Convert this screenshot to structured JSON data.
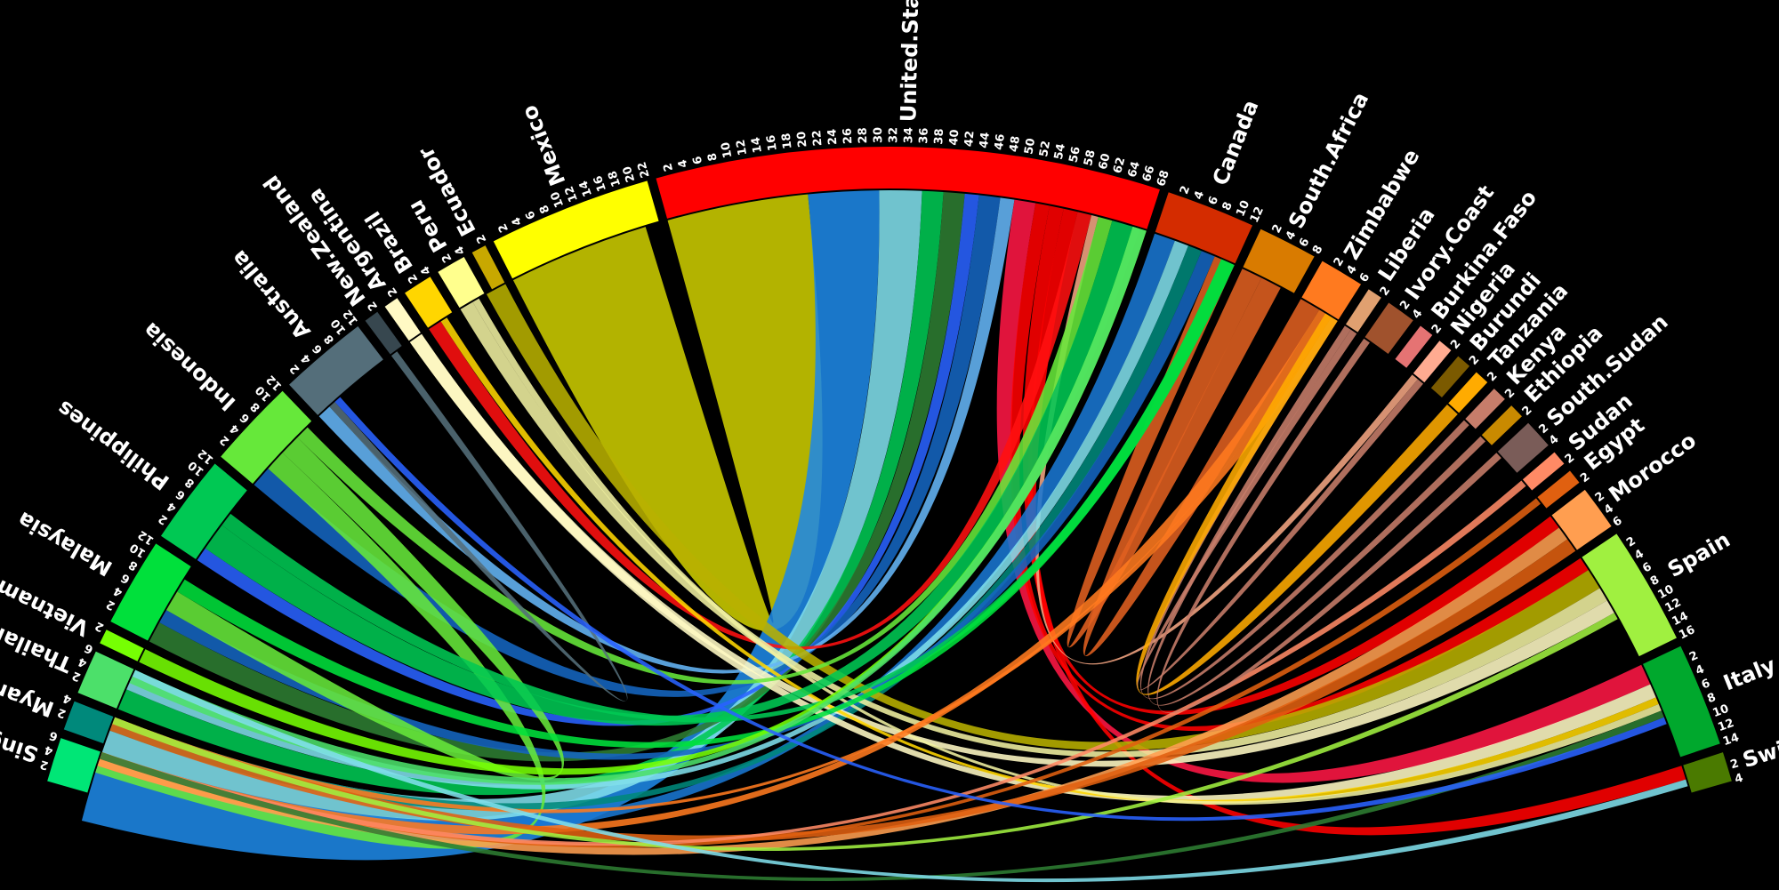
{
  "sectors": [
    {
      "name": "Singapore",
      "max": 6,
      "ticks": [
        2,
        4,
        6
      ],
      "color": "#00E676"
    },
    {
      "name": "Myanmar",
      "max": 4,
      "ticks": [
        2,
        4
      ],
      "color": "#00897B"
    },
    {
      "name": "Thailand",
      "max": 6,
      "ticks": [
        2,
        4,
        6
      ],
      "color": "#4CE06A"
    },
    {
      "name": "Vietnam",
      "max": 2,
      "ticks": [
        2
      ],
      "color": "#76FF03"
    },
    {
      "name": "Malaysia",
      "max": 12,
      "ticks": [
        2,
        4,
        6,
        8,
        10,
        12
      ],
      "color": "#00E03B"
    },
    {
      "name": "Philippines",
      "max": 12,
      "ticks": [
        2,
        4,
        6,
        8,
        10,
        12
      ],
      "color": "#00C853"
    },
    {
      "name": "Indonesia",
      "max": 12,
      "ticks": [
        2,
        4,
        6,
        8,
        10,
        12
      ],
      "color": "#66E83A"
    },
    {
      "name": "Australia",
      "max": 12,
      "ticks": [
        2,
        4,
        6,
        8,
        10,
        12
      ],
      "color": "#546E7A"
    },
    {
      "name": "New.Zealand",
      "max": 2,
      "ticks": [
        2
      ],
      "color": "#37474F"
    },
    {
      "name": "Argentina",
      "max": 2,
      "ticks": [
        2
      ],
      "color": "#FFF9C4"
    },
    {
      "name": "Brazil",
      "max": 4,
      "ticks": [
        2,
        4
      ],
      "color": "#FFD600"
    },
    {
      "name": "Peru",
      "max": 4,
      "ticks": [
        2,
        4
      ],
      "color": "#FFFF8D"
    },
    {
      "name": "Ecuador",
      "max": 2,
      "ticks": [
        2
      ],
      "color": "#C8A800"
    },
    {
      "name": "Mexico",
      "max": 22,
      "ticks": [
        2,
        4,
        6,
        8,
        10,
        12,
        14,
        16,
        18,
        20,
        22
      ],
      "color": "#FFFF00"
    },
    {
      "name": "United.States",
      "max": 68,
      "ticks": [
        2,
        4,
        6,
        8,
        10,
        12,
        14,
        16,
        18,
        20,
        22,
        24,
        26,
        28,
        30,
        32,
        34,
        36,
        38,
        40,
        42,
        44,
        46,
        48,
        50,
        52,
        54,
        56,
        58,
        60,
        62,
        64,
        66,
        68
      ],
      "color": "#FF0000"
    },
    {
      "name": "Canada",
      "max": 12,
      "ticks": [
        2,
        4,
        6,
        8,
        10,
        12
      ],
      "color": "#D42C00"
    },
    {
      "name": "South.Africa",
      "max": 8,
      "ticks": [
        2,
        4,
        6,
        8
      ],
      "color": "#D97B00"
    },
    {
      "name": "Zimbabwe",
      "max": 6,
      "ticks": [
        2,
        4,
        6
      ],
      "color": "#FF7A1F"
    },
    {
      "name": "Liberia",
      "max": 2,
      "ticks": [
        2
      ],
      "color": "#E0A070"
    },
    {
      "name": "Ivory.Coast",
      "max": 4,
      "ticks": [
        2,
        4
      ],
      "color": "#A0522D"
    },
    {
      "name": "Burkina.Faso",
      "max": 2,
      "ticks": [
        2
      ],
      "color": "#E57373"
    },
    {
      "name": "Nigeria",
      "max": 2,
      "ticks": [
        2
      ],
      "color": "#FFAB91"
    },
    {
      "name": "Burundi",
      "max": 2,
      "ticks": [
        2
      ],
      "color": "#7B5A00"
    },
    {
      "name": "Tanzania",
      "max": 2,
      "ticks": [
        2
      ],
      "color": "#FFAB00"
    },
    {
      "name": "Kenya",
      "max": 2,
      "ticks": [
        2
      ],
      "color": "#C77D6A"
    },
    {
      "name": "Ethiopia",
      "max": 2,
      "ticks": [
        2
      ],
      "color": "#C98A00"
    },
    {
      "name": "South.Sudan",
      "max": 4,
      "ticks": [
        2,
        4
      ],
      "color": "#7A5C58"
    },
    {
      "name": "Sudan",
      "max": 2,
      "ticks": [
        2
      ],
      "color": "#FF8A65"
    },
    {
      "name": "Egypt",
      "max": 2,
      "ticks": [
        2
      ],
      "color": "#E06010"
    },
    {
      "name": "Morocco",
      "max": 6,
      "ticks": [
        2,
        4,
        6
      ],
      "color": "#FF9E50"
    },
    {
      "name": "Spain",
      "max": 16,
      "ticks": [
        2,
        4,
        6,
        8,
        10,
        12,
        14,
        16
      ],
      "color": "#A0F040"
    },
    {
      "name": "Italy",
      "max": 14,
      "ticks": [
        2,
        4,
        6,
        8,
        10,
        12,
        14
      ],
      "color": "#00A82D"
    },
    {
      "name": "Switzerland",
      "max": 4,
      "ticks": [
        2,
        4
      ],
      "color": "#4A7A00"
    }
  ],
  "links": [
    {
      "from": "Mexico",
      "to": "United.States",
      "width": 20,
      "color": "#CCCC00",
      "self": true
    },
    {
      "from": "United.States",
      "to": "Singapore",
      "width": 10,
      "color": "#1E88E5"
    },
    {
      "from": "United.States",
      "to": "Myanmar",
      "width": 6,
      "color": "#80DEEA"
    },
    {
      "from": "United.States",
      "to": "Thailand",
      "width": 3,
      "color": "#00C853"
    },
    {
      "from": "United.States",
      "to": "Malaysia",
      "width": 3,
      "color": "#2E7D32"
    },
    {
      "from": "United.States",
      "to": "Philippines",
      "width": 2,
      "color": "#2962FF"
    },
    {
      "from": "United.States",
      "to": "Indonesia",
      "width": 3,
      "color": "#1565C0"
    },
    {
      "from": "United.States",
      "to": "Australia",
      "width": 2,
      "color": "#64B5F6"
    },
    {
      "from": "United.States",
      "to": "Italy",
      "width": 3,
      "color": "#FF1744"
    },
    {
      "from": "United.States",
      "to": "Spain",
      "width": 2,
      "color": "#FF0000"
    },
    {
      "from": "United.States",
      "to": "Switzerland",
      "width": 2,
      "color": "#FF0000"
    },
    {
      "from": "United.States",
      "to": "Morocco",
      "width": 2,
      "color": "#FF0000"
    },
    {
      "from": "United.States",
      "to": "Brazil",
      "width": 2,
      "color": "#FF1010"
    },
    {
      "from": "United.States",
      "to": "Nigeria",
      "width": 1,
      "color": "#F4A582"
    },
    {
      "from": "Canada",
      "to": "Singapore",
      "width": 3,
      "color": "#1976D2"
    },
    {
      "from": "Canada",
      "to": "Thailand",
      "width": 2,
      "color": "#80DEEA"
    },
    {
      "from": "Canada",
      "to": "Myanmar",
      "width": 2,
      "color": "#00897B"
    },
    {
      "from": "Canada",
      "to": "Malaysia",
      "width": 2,
      "color": "#1565C0"
    },
    {
      "from": "South.Africa",
      "to": "Zimbabwe",
      "width": 3,
      "color": "#E06020",
      "self": true
    },
    {
      "from": "South.Africa",
      "to": "Canada",
      "width": 3,
      "color": "#E06020",
      "self": true
    },
    {
      "from": "Ecuador",
      "to": "Spain",
      "width": 3,
      "color": "#B8B000"
    },
    {
      "from": "Peru",
      "to": "Spain",
      "width": 2,
      "color": "#F0F0A0"
    },
    {
      "from": "Argentina",
      "to": "Spain",
      "width": 2,
      "color": "#FFF9C4"
    },
    {
      "from": "Argentina",
      "to": "Italy",
      "width": 2,
      "color": "#FFF9C4"
    },
    {
      "from": "Brazil",
      "to": "Italy",
      "width": 1,
      "color": "#FFD600"
    },
    {
      "from": "Peru",
      "to": "Italy",
      "width": 1,
      "color": "#F0F0A0"
    },
    {
      "from": "Indonesia",
      "to": "Singapore",
      "width": 3,
      "color": "#66E83A"
    },
    {
      "from": "Indonesia",
      "to": "Malaysia",
      "width": 3,
      "color": "#66E83A"
    },
    {
      "from": "Indonesia",
      "to": "United.States",
      "width": 2,
      "color": "#66E83A"
    },
    {
      "from": "Philippines",
      "to": "United.States",
      "width": 4,
      "color": "#00C853"
    },
    {
      "from": "Philippines",
      "to": "Canada",
      "width": 2,
      "color": "#00C853"
    },
    {
      "from": "Malaysia",
      "to": "Canada",
      "width": 2,
      "color": "#00E03B"
    },
    {
      "from": "Vietnam",
      "to": "United.States",
      "width": 2,
      "color": "#76FF03"
    },
    {
      "from": "Thailand",
      "to": "United.States",
      "width": 2,
      "color": "#4CE06A"
    },
    {
      "from": "Australia",
      "to": "New.Zealand",
      "width": 1,
      "color": "#546E7A",
      "self": true
    },
    {
      "from": "Zimbabwe",
      "to": "Singapore",
      "width": 2,
      "color": "#FF7A1F"
    },
    {
      "from": "Zimbabwe",
      "to": "Myanmar",
      "width": 1,
      "color": "#FF7A1F"
    },
    {
      "from": "Morocco",
      "to": "Singapore",
      "width": 2,
      "color": "#FF9E50"
    },
    {
      "from": "Morocco",
      "to": "Myanmar",
      "width": 2,
      "color": "#E06010"
    },
    {
      "from": "Egypt",
      "to": "Singapore",
      "width": 1,
      "color": "#E06010"
    },
    {
      "from": "Sudan",
      "to": "Singapore",
      "width": 1,
      "color": "#FF8A65"
    },
    {
      "from": "Kenya",
      "to": "Zimbabwe",
      "width": 1,
      "color": "#C77D6A",
      "self": true
    },
    {
      "from": "Tanzania",
      "to": "Zimbabwe",
      "width": 2,
      "color": "#FFAB00",
      "self": true
    },
    {
      "from": "South.Sudan",
      "to": "Ivory.Coast",
      "width": 1,
      "color": "#C77D6A",
      "self": true
    },
    {
      "from": "Ethiopia",
      "to": "Liberia",
      "width": 1,
      "color": "#C77D6A",
      "self": true
    },
    {
      "from": "Nigeria",
      "to": "Liberia",
      "width": 1,
      "color": "#C77D6A",
      "self": true
    },
    {
      "from": "Italy",
      "to": "Singapore",
      "width": 1,
      "color": "#2E7D32"
    },
    {
      "from": "Spain",
      "to": "Myanmar",
      "width": 1,
      "color": "#A0F040"
    },
    {
      "from": "Switzerland",
      "to": "Thailand",
      "width": 1,
      "color": "#80DEEA"
    },
    {
      "from": "Italy",
      "to": "Australia",
      "width": 1,
      "color": "#2962FF"
    }
  ]
}
